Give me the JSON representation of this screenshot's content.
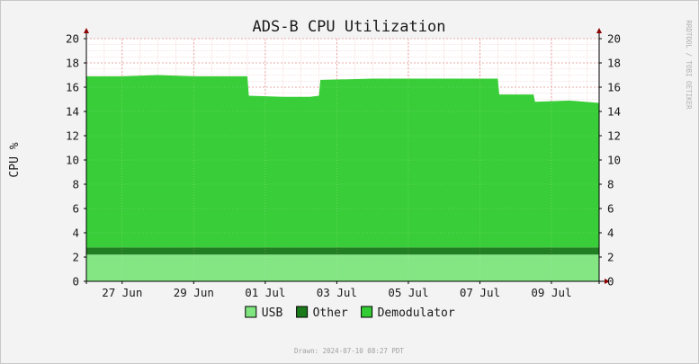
{
  "chart_data": {
    "type": "area",
    "title": "ADS-B CPU Utilization",
    "ylabel": "CPU %",
    "xlabel": "",
    "ylim": [
      0,
      20
    ],
    "xlim": [
      "2024-06-26T00:00",
      "2024-07-10T08:00"
    ],
    "y_ticks": [
      0,
      2,
      4,
      6,
      8,
      10,
      12,
      14,
      16,
      18,
      20
    ],
    "x_ticks": [
      {
        "x": "2024-06-27",
        "label": "27 Jun"
      },
      {
        "x": "2024-06-29",
        "label": "29 Jun"
      },
      {
        "x": "2024-07-01",
        "label": "01 Jul"
      },
      {
        "x": "2024-07-03",
        "label": "03 Jul"
      },
      {
        "x": "2024-07-05",
        "label": "05 Jul"
      },
      {
        "x": "2024-07-07",
        "label": "07 Jul"
      },
      {
        "x": "2024-07-09",
        "label": "09 Jul"
      }
    ],
    "stacked": true,
    "grid": true,
    "legend_position": "bottom",
    "x": [
      "2024-06-26T00:00",
      "2024-06-27T00:00",
      "2024-06-28T00:00",
      "2024-06-29T00:00",
      "2024-06-30T12:00",
      "2024-06-30T13:00",
      "2024-07-01T12:00",
      "2024-07-02T06:00",
      "2024-07-02T12:00",
      "2024-07-02T13:00",
      "2024-07-04T00:00",
      "2024-07-06T00:00",
      "2024-07-07T12:00",
      "2024-07-07T13:00",
      "2024-07-08T12:00",
      "2024-07-08T13:00",
      "2024-07-09T12:00",
      "2024-07-10T08:00"
    ],
    "series": [
      {
        "name": "USB",
        "color": "#7fe57f",
        "values": [
          2.2,
          2.2,
          2.2,
          2.2,
          2.2,
          2.2,
          2.2,
          2.2,
          2.2,
          2.2,
          2.2,
          2.2,
          2.2,
          2.2,
          2.2,
          2.2,
          2.2,
          2.2
        ]
      },
      {
        "name": "Other",
        "color": "#1b7a1b",
        "values": [
          0.6,
          0.6,
          0.6,
          0.6,
          0.6,
          0.6,
          0.6,
          0.6,
          0.6,
          0.6,
          0.6,
          0.6,
          0.6,
          0.6,
          0.6,
          0.6,
          0.6,
          0.6
        ]
      },
      {
        "name": "Demodulator",
        "color": "#33cc33",
        "values": [
          14.1,
          14.1,
          14.2,
          14.1,
          14.1,
          12.5,
          12.4,
          12.4,
          12.5,
          13.8,
          13.9,
          13.9,
          13.9,
          12.6,
          12.6,
          12.0,
          12.1,
          11.9
        ]
      }
    ],
    "watermark": "RRDTOOL / TOBI OETIKER",
    "footer": "Drawn: 2024-07-10 08:27 PDT"
  },
  "colors": {
    "background": "#f3f3f3",
    "plot_background": "#ffffff",
    "grid_major": "#e88a8a",
    "grid_minor": "#f2c9c9",
    "axis": "#8b0000",
    "text": "#1a1a1a",
    "watermark": "#b0b0b0"
  }
}
